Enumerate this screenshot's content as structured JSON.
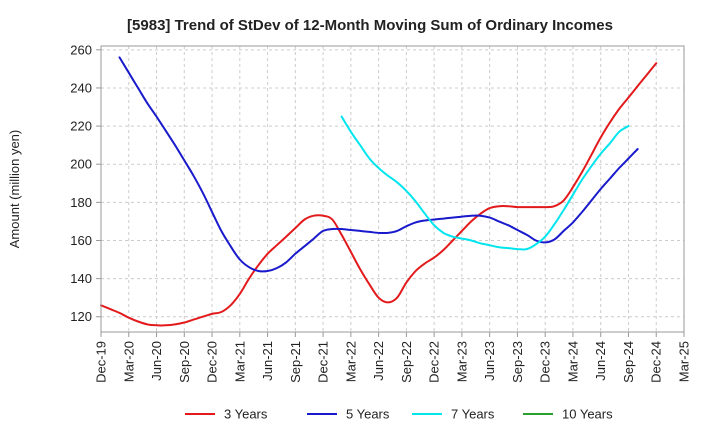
{
  "chart_data": {
    "type": "line",
    "title": "[5983]  Trend of StDev of 12-Month Moving Sum of Ordinary Incomes",
    "xlabel": "",
    "ylabel": "Amount (million yen)",
    "ylim": [
      112,
      262
    ],
    "yticks": [
      120,
      140,
      160,
      180,
      200,
      220,
      240,
      260
    ],
    "x_tick_labels": [
      "Dec-19",
      "Mar-20",
      "Jun-20",
      "Sep-20",
      "Dec-20",
      "Mar-21",
      "Jun-21",
      "Sep-21",
      "Dec-21",
      "Mar-22",
      "Jun-22",
      "Sep-22",
      "Dec-22",
      "Mar-23",
      "Jun-23",
      "Sep-23",
      "Dec-23",
      "Mar-24",
      "Jun-24",
      "Sep-24",
      "Dec-24",
      "Mar-25"
    ],
    "x_range_months": [
      0,
      63
    ],
    "grid": true,
    "legend_position": "bottom",
    "series": [
      {
        "name": "3 Years",
        "color": "#e31a1c",
        "points": [
          [
            0,
            126
          ],
          [
            1,
            124
          ],
          [
            2,
            122
          ],
          [
            3,
            119.5
          ],
          [
            4,
            117.5
          ],
          [
            5,
            116
          ],
          [
            6,
            115.5
          ],
          [
            7,
            115.5
          ],
          [
            8,
            116
          ],
          [
            9,
            117
          ],
          [
            10,
            118.5
          ],
          [
            11,
            120
          ],
          [
            12,
            121.5
          ],
          [
            13,
            122.5
          ],
          [
            14,
            126
          ],
          [
            15,
            132
          ],
          [
            16,
            140
          ],
          [
            17,
            147
          ],
          [
            18,
            153
          ],
          [
            19,
            157.5
          ],
          [
            20,
            162
          ],
          [
            21,
            166.5
          ],
          [
            22,
            171
          ],
          [
            23,
            173
          ],
          [
            24,
            173
          ],
          [
            25,
            171
          ],
          [
            26,
            163
          ],
          [
            27,
            154
          ],
          [
            28,
            145
          ],
          [
            29,
            137
          ],
          [
            30,
            130
          ],
          [
            31,
            127.5
          ],
          [
            32,
            130
          ],
          [
            33,
            138
          ],
          [
            34,
            144
          ],
          [
            35,
            148
          ],
          [
            36,
            151
          ],
          [
            37,
            155
          ],
          [
            38,
            160
          ],
          [
            39,
            165
          ],
          [
            40,
            170
          ],
          [
            41,
            174
          ],
          [
            42,
            177
          ],
          [
            43,
            178
          ],
          [
            44,
            178
          ],
          [
            45,
            177.5
          ],
          [
            46,
            177.5
          ],
          [
            47,
            177.5
          ],
          [
            48,
            177.5
          ],
          [
            49,
            178
          ],
          [
            50,
            181
          ],
          [
            51,
            188
          ],
          [
            52,
            196
          ],
          [
            53,
            205
          ],
          [
            54,
            214
          ],
          [
            55,
            222
          ],
          [
            56,
            229
          ],
          [
            57,
            235
          ],
          [
            58,
            241
          ],
          [
            59,
            247
          ],
          [
            60,
            253
          ]
        ]
      },
      {
        "name": "5 Years",
        "color": "#1a1acd",
        "points": [
          [
            2,
            256
          ],
          [
            3,
            248
          ],
          [
            4,
            240
          ],
          [
            5,
            232
          ],
          [
            6,
            225
          ],
          [
            7,
            217.5
          ],
          [
            8,
            210
          ],
          [
            9,
            202
          ],
          [
            10,
            194
          ],
          [
            11,
            185
          ],
          [
            12,
            175
          ],
          [
            13,
            165
          ],
          [
            14,
            157
          ],
          [
            15,
            150
          ],
          [
            16,
            146
          ],
          [
            17,
            144
          ],
          [
            18,
            144
          ],
          [
            19,
            145.5
          ],
          [
            20,
            148.5
          ],
          [
            21,
            153
          ],
          [
            22,
            157
          ],
          [
            23,
            161
          ],
          [
            24,
            165
          ],
          [
            25,
            166
          ],
          [
            26,
            166
          ],
          [
            27,
            165.5
          ],
          [
            28,
            165
          ],
          [
            29,
            164.5
          ],
          [
            30,
            164
          ],
          [
            31,
            164
          ],
          [
            32,
            165
          ],
          [
            33,
            167.5
          ],
          [
            34,
            169.5
          ],
          [
            35,
            170.5
          ],
          [
            36,
            171
          ],
          [
            37,
            171.5
          ],
          [
            38,
            172
          ],
          [
            39,
            172.5
          ],
          [
            40,
            173
          ],
          [
            41,
            173
          ],
          [
            42,
            172
          ],
          [
            43,
            170
          ],
          [
            44,
            168
          ],
          [
            45,
            165.5
          ],
          [
            46,
            163
          ],
          [
            47,
            160
          ],
          [
            48,
            159
          ],
          [
            49,
            160.5
          ],
          [
            50,
            165
          ],
          [
            51,
            169.5
          ],
          [
            52,
            175
          ],
          [
            53,
            181
          ],
          [
            54,
            187
          ],
          [
            55,
            192.5
          ],
          [
            56,
            198
          ],
          [
            57,
            203
          ],
          [
            58,
            208
          ]
        ]
      },
      {
        "name": "7 Years",
        "color": "#00e5ee",
        "points": [
          [
            26,
            225
          ],
          [
            27,
            217
          ],
          [
            28,
            210
          ],
          [
            29,
            203
          ],
          [
            30,
            198
          ],
          [
            31,
            194
          ],
          [
            32,
            190.5
          ],
          [
            33,
            186
          ],
          [
            34,
            180.5
          ],
          [
            35,
            174
          ],
          [
            36,
            168
          ],
          [
            37,
            164
          ],
          [
            38,
            162
          ],
          [
            39,
            161
          ],
          [
            40,
            160
          ],
          [
            41,
            158.5
          ],
          [
            42,
            157.5
          ],
          [
            43,
            156.5
          ],
          [
            44,
            156
          ],
          [
            45,
            155.5
          ],
          [
            46,
            155.5
          ],
          [
            47,
            158
          ],
          [
            48,
            162
          ],
          [
            49,
            168.5
          ],
          [
            50,
            176
          ],
          [
            51,
            184
          ],
          [
            52,
            192
          ],
          [
            53,
            199
          ],
          [
            54,
            205.5
          ],
          [
            55,
            211
          ],
          [
            56,
            217
          ],
          [
            57,
            220
          ]
        ]
      },
      {
        "name": "10 Years",
        "color": "#2ca02c",
        "points": []
      }
    ]
  }
}
